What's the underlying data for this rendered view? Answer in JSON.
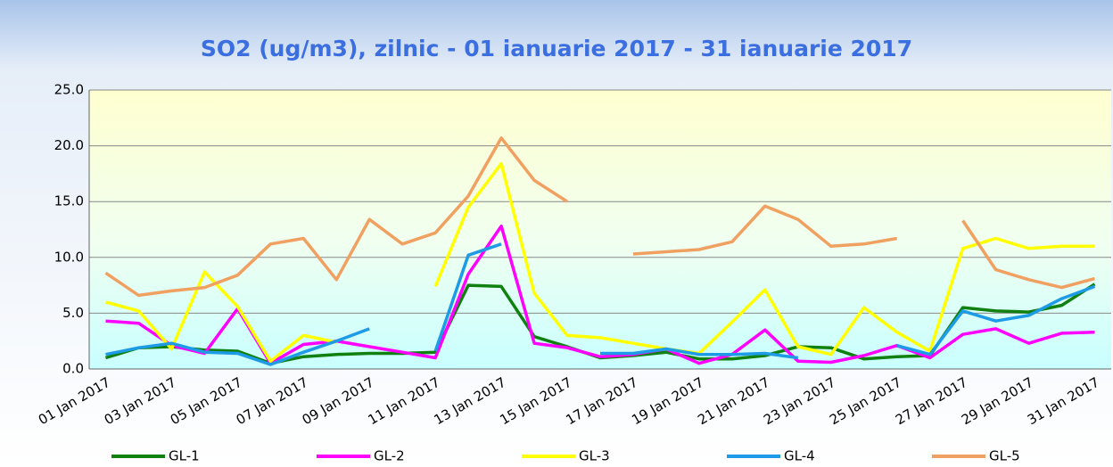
{
  "chart_data": {
    "type": "line",
    "title": "SO2 (ug/m3), zilnic - 01 ianuarie 2017 - 31 ianuarie 2017",
    "categories": [
      "01 Jan 2017",
      null,
      "03 Jan 2017",
      null,
      "05 Jan 2017",
      null,
      "07 Jan 2017",
      null,
      "09 Jan 2017",
      null,
      "11 Jan 2017",
      null,
      "13 Jan 2017",
      null,
      "15 Jan 2017",
      null,
      "17 Jan 2017",
      null,
      "19 Jan 2017",
      null,
      "21 Jan 2017",
      null,
      "23 Jan 2017",
      null,
      "25 Jan 2017",
      null,
      "27 Jan 2017",
      null,
      "29 Jan 2017",
      null,
      "31 Jan 2017"
    ],
    "series": [
      {
        "name": "GL-1",
        "color": "#108010",
        "values": [
          1.0,
          1.9,
          2.0,
          1.7,
          1.6,
          0.5,
          1.1,
          1.3,
          1.4,
          1.4,
          1.5,
          7.5,
          7.4,
          2.9,
          2.0,
          1.0,
          1.2,
          1.5,
          0.9,
          0.9,
          1.2,
          2.0,
          1.9,
          0.9,
          1.1,
          1.2,
          5.5,
          5.2,
          5.1,
          5.7,
          7.6
        ]
      },
      {
        "name": "GL-2",
        "color": "#ff00ff",
        "values": [
          4.3,
          4.1,
          2.1,
          1.4,
          5.4,
          0.5,
          2.2,
          2.5,
          2.0,
          1.5,
          1.0,
          8.5,
          12.8,
          2.3,
          1.9,
          1.1,
          1.3,
          1.8,
          0.5,
          1.3,
          3.5,
          0.7,
          0.6,
          1.2,
          2.1,
          1.0,
          3.1,
          3.6,
          2.3,
          3.2,
          3.3
        ]
      },
      {
        "name": "GL-3",
        "color": "#ffff00",
        "values": [
          6.0,
          5.2,
          1.8,
          8.7,
          5.6,
          0.7,
          3.0,
          2.4,
          null,
          null,
          7.4,
          14.5,
          18.4,
          6.8,
          3.0,
          2.8,
          2.3,
          1.8,
          1.4,
          4.2,
          7.1,
          2.0,
          1.3,
          5.5,
          3.3,
          1.6,
          10.8,
          11.7,
          10.8,
          11.0,
          11.0
        ]
      },
      {
        "name": "GL-4",
        "color": "#1e9be6",
        "values": [
          1.3,
          1.9,
          2.3,
          1.5,
          1.4,
          0.4,
          1.5,
          2.5,
          3.6,
          null,
          1.6,
          10.2,
          11.2,
          null,
          null,
          1.4,
          1.4,
          1.8,
          1.3,
          1.3,
          1.4,
          1.0,
          null,
          null,
          2.1,
          1.3,
          5.2,
          4.3,
          4.8,
          6.3,
          7.4
        ]
      },
      {
        "name": "GL-5",
        "color": "#f0a060",
        "values": [
          8.6,
          6.6,
          7.0,
          7.3,
          8.4,
          11.2,
          11.7,
          8.0,
          13.4,
          11.2,
          12.2,
          15.5,
          20.7,
          16.9,
          15.0,
          null,
          10.3,
          10.5,
          10.7,
          11.4,
          14.6,
          13.4,
          11.0,
          11.2,
          11.7,
          null,
          13.3,
          8.9,
          8.0,
          7.3,
          8.1
        ]
      }
    ],
    "ylim": [
      0,
      25
    ],
    "yticks": [
      {
        "value": 0,
        "label": "0.0"
      },
      {
        "value": 5,
        "label": "5.0"
      },
      {
        "value": 10,
        "label": "10.0"
      },
      {
        "value": 15,
        "label": "15.0"
      },
      {
        "value": 20,
        "label": "20.0"
      },
      {
        "value": 25,
        "label": "25.0"
      }
    ],
    "grid": true,
    "legend": "bottom"
  }
}
